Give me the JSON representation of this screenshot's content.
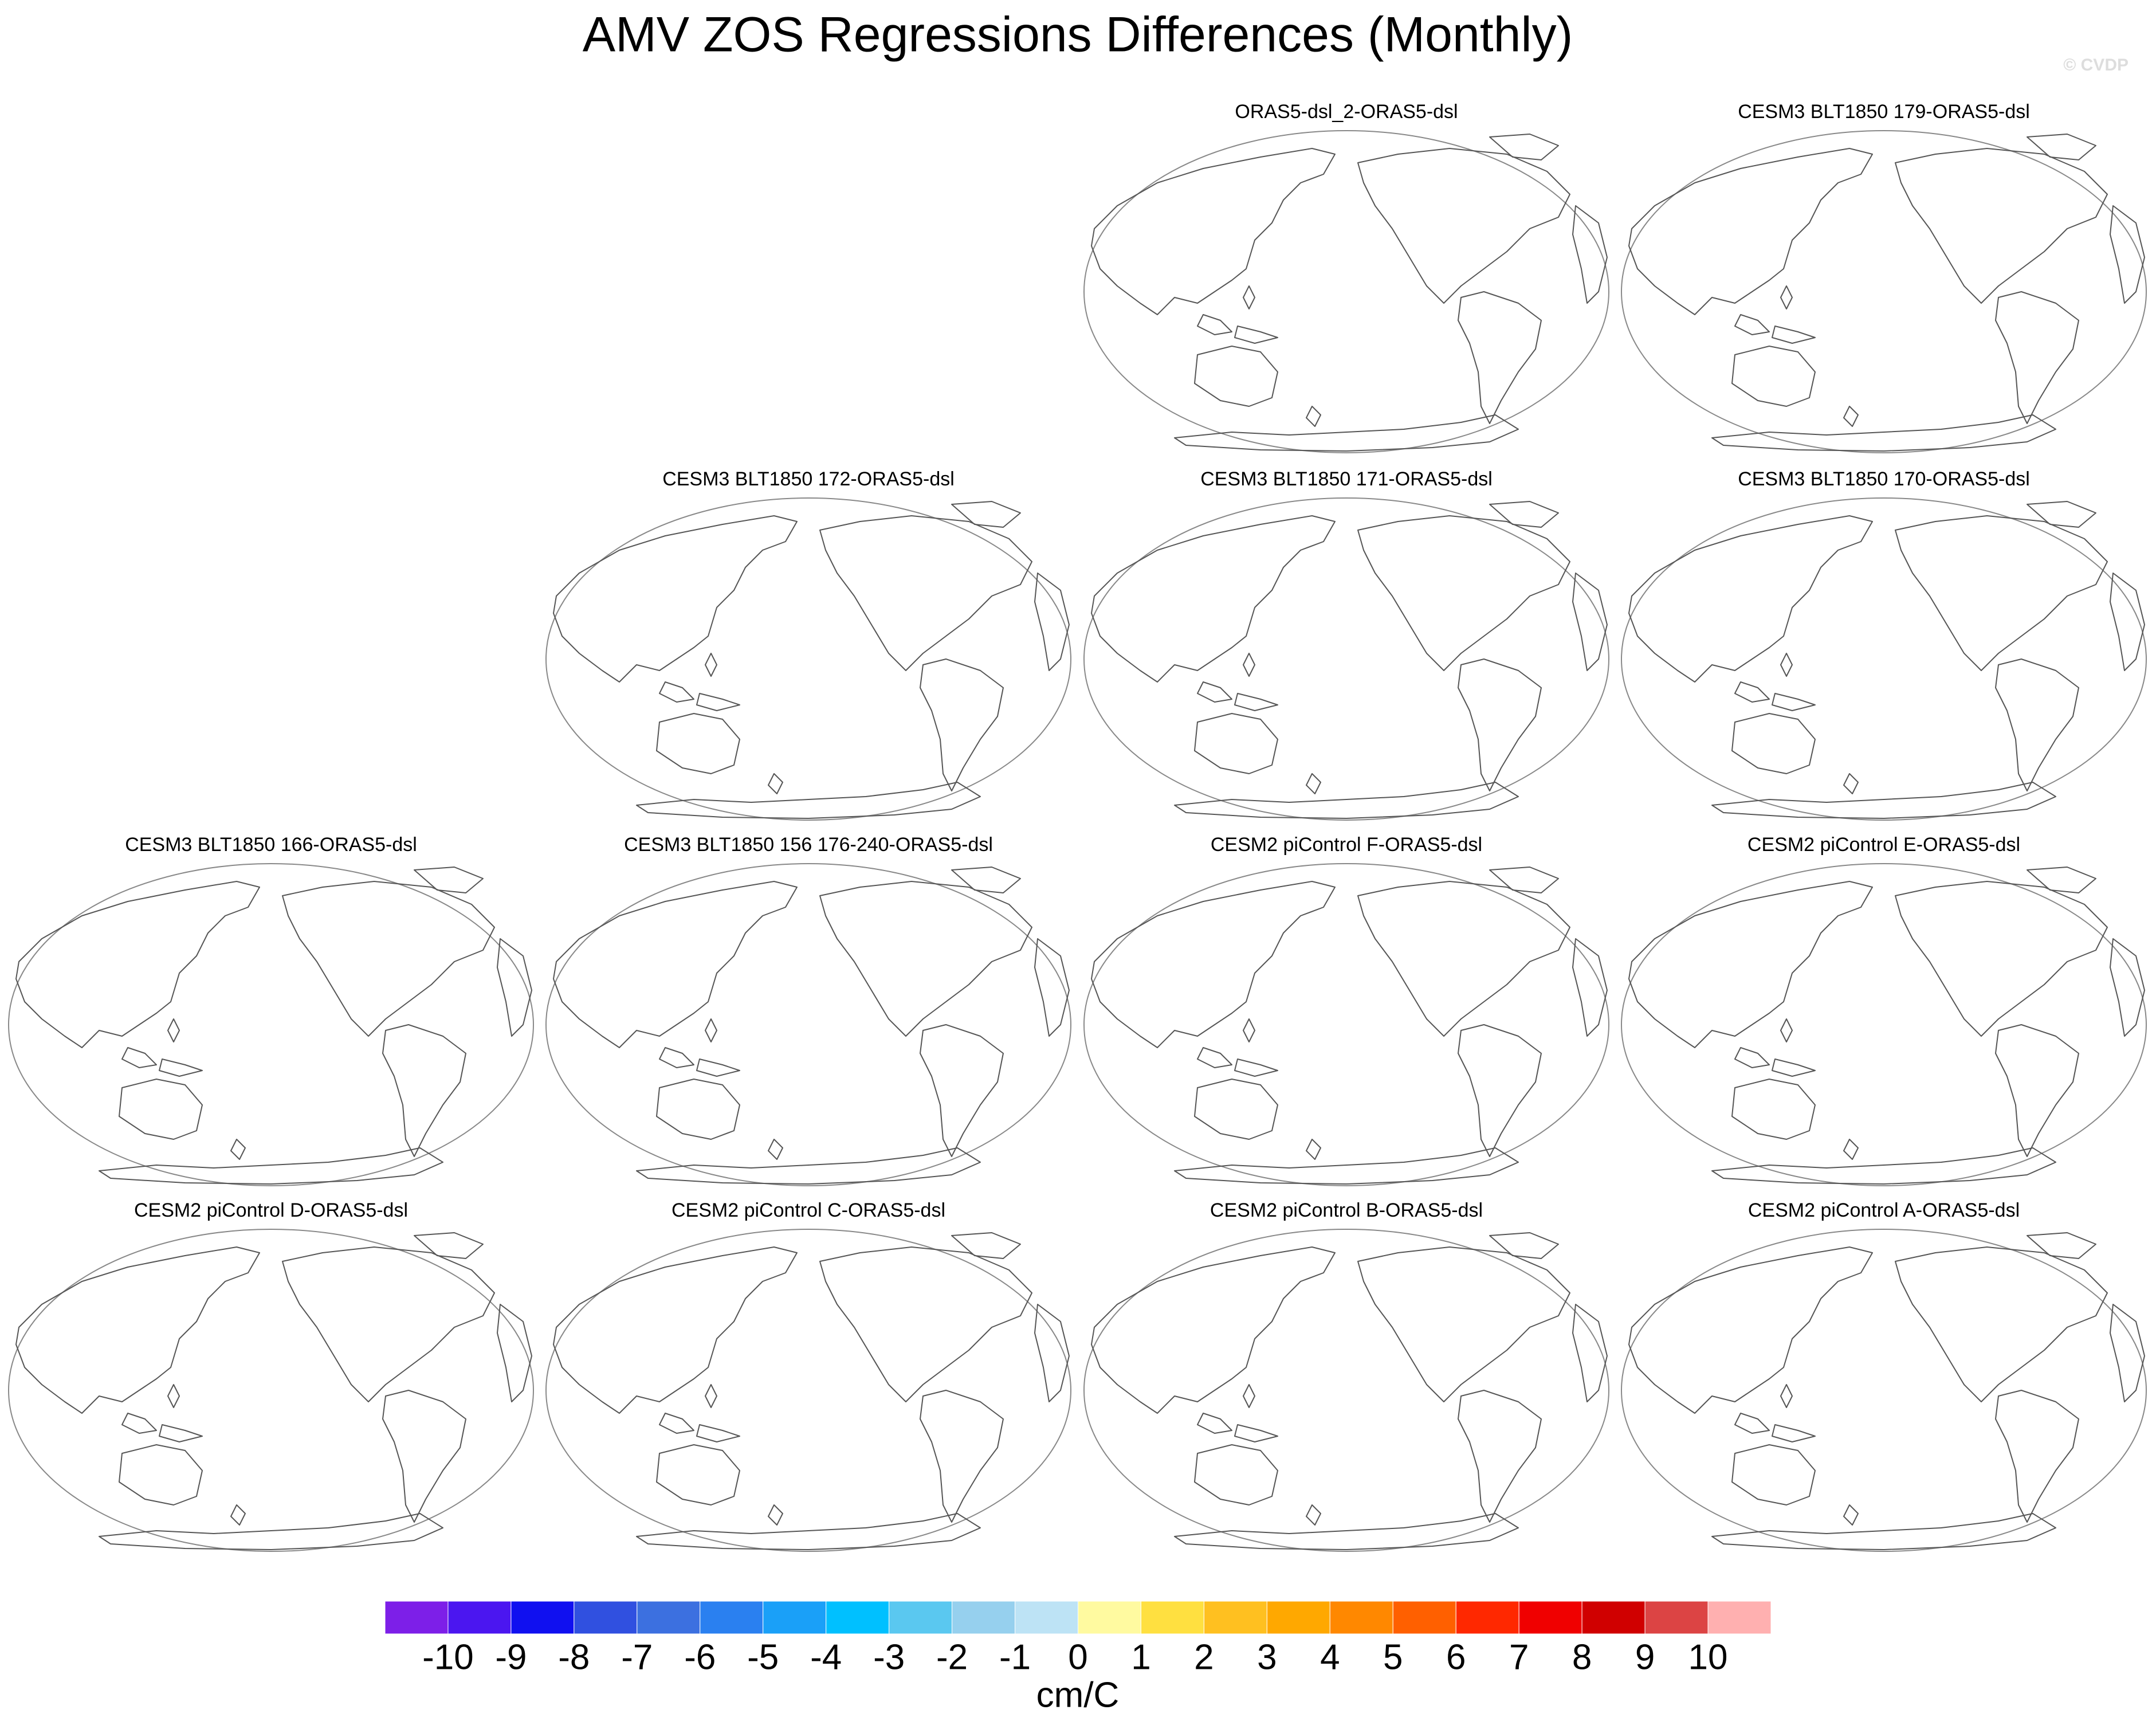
{
  "title": "AMV ZOS Regressions Differences (Monthly)",
  "watermark": "© CVDP",
  "panels": [
    {
      "title": "ORAS5-dsl_2-ORAS5-dsl"
    },
    {
      "title": "CESM3 BLT1850 179-ORAS5-dsl"
    },
    {
      "title": "CESM3 BLT1850 172-ORAS5-dsl"
    },
    {
      "title": "CESM3 BLT1850 171-ORAS5-dsl"
    },
    {
      "title": "CESM3 BLT1850 170-ORAS5-dsl"
    },
    {
      "title": "CESM3 BLT1850 166-ORAS5-dsl"
    },
    {
      "title": "CESM3 BLT1850 156 176-240-ORAS5-dsl"
    },
    {
      "title": "CESM2 piControl F-ORAS5-dsl"
    },
    {
      "title": "CESM2 piControl E-ORAS5-dsl"
    },
    {
      "title": "CESM2 piControl D-ORAS5-dsl"
    },
    {
      "title": "CESM2 piControl C-ORAS5-dsl"
    },
    {
      "title": "CESM2 piControl B-ORAS5-dsl"
    },
    {
      "title": "CESM2 piControl A-ORAS5-dsl"
    }
  ],
  "colorbar": {
    "colors": [
      "#7d1fe8",
      "#4b16f0",
      "#1010f0",
      "#3050e0",
      "#3c70e0",
      "#2a80f0",
      "#1aa0f8",
      "#00c0ff",
      "#5ac8f0",
      "#96d0ee",
      "#bde3f5",
      "#fffaa0",
      "#ffe040",
      "#ffc020",
      "#ffa800",
      "#ff8800",
      "#ff6000",
      "#ff2800",
      "#f00000",
      "#d00000",
      "#dc4444",
      "#ffb0b0"
    ],
    "levels": [
      -10,
      -9,
      -8,
      -7,
      -6,
      -5,
      -4,
      -3,
      -2,
      -1,
      0,
      1,
      2,
      3,
      4,
      5,
      6,
      7,
      8,
      9,
      10
    ],
    "label": "cm/C"
  }
}
